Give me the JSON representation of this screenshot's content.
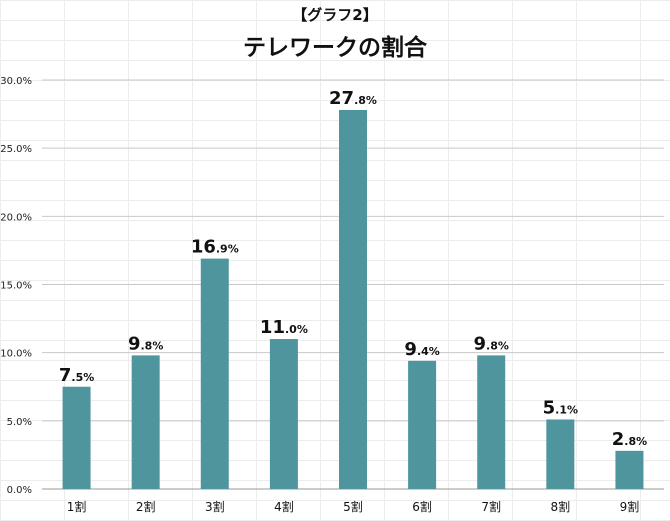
{
  "chart_data": {
    "type": "bar",
    "subtitle": "【グラフ2】",
    "title": "テレワークの割合",
    "categories": [
      "1割",
      "2割",
      "3割",
      "4割",
      "5割",
      "6割",
      "7割",
      "8割",
      "9割"
    ],
    "values": [
      7.5,
      9.8,
      16.9,
      11.0,
      27.8,
      9.4,
      9.8,
      5.1,
      2.8
    ],
    "value_unit": "%",
    "ylim": [
      0,
      30
    ],
    "yticks": [
      0,
      5,
      10,
      15,
      20,
      25,
      30
    ],
    "ytick_labels": [
      "0.0%",
      "5.0%",
      "10.0%",
      "15.0%",
      "20.0%",
      "25.0%",
      "30.0%"
    ],
    "bar_color": "#4f959d",
    "grid": true
  }
}
